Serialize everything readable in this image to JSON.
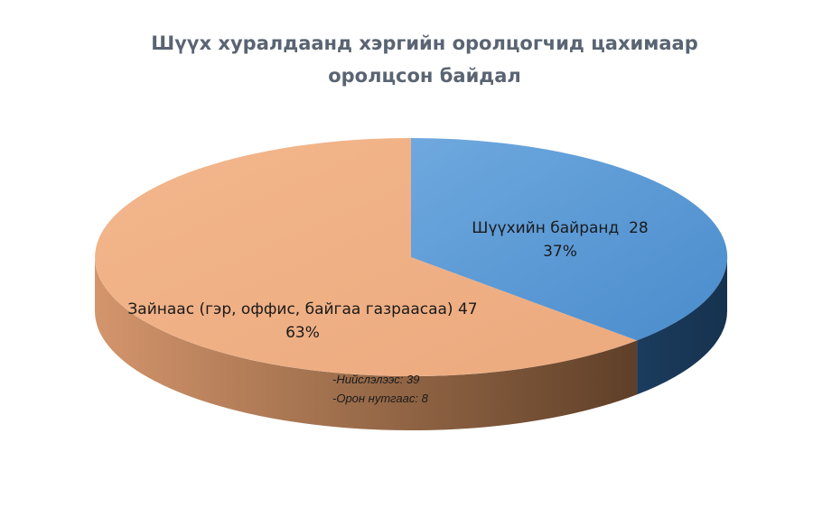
{
  "chart_data": {
    "type": "pie",
    "title_lines": [
      "Шүүх хуралдаанд хэргийн оролцогчид цахимаар",
      "оролцсон байдал"
    ],
    "slices": [
      {
        "label": "Шүүхийн байранд",
        "value": 28,
        "percent_label": "37%",
        "color": "#5b9bd5"
      },
      {
        "label": "Зайнаас (гэр, оффис, байгаа газраасаа)",
        "value": 47,
        "percent_label": "63%",
        "color": "#f0ae82"
      }
    ],
    "annotation_lines": [
      "-Нийслэлээс: 39",
      "-Орон нутгаас: 8"
    ],
    "style": "3d"
  }
}
